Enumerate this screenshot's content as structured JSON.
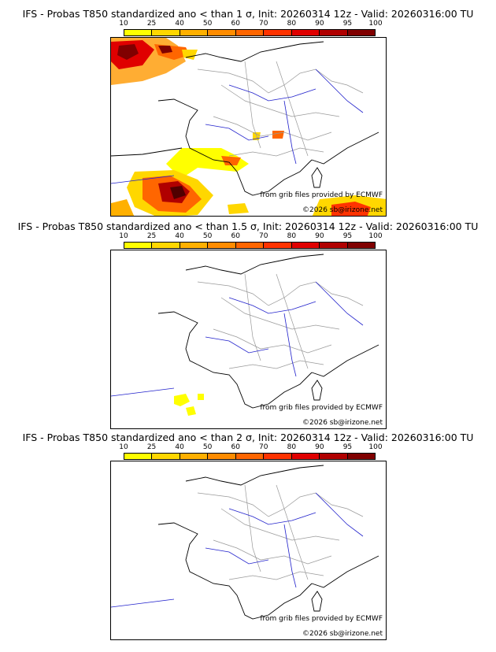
{
  "panels": [
    {
      "title": "IFS - Probas T850  standardized ano < than 1 σ, Init: 20260314 12z - Valid: 20260316:00 TU",
      "credit": "from grib files provided by ECMWF",
      "copyright": "©2026 sb@irizone.net"
    },
    {
      "title": "IFS - Probas T850  standardized ano < than 1.5 σ, Init: 20260314 12z - Valid: 20260316:00 TU",
      "credit": "from grib files provided by ECMWF",
      "copyright": "©2026 sb@irizone.net"
    },
    {
      "title": "IFS - Probas T850  standardized ano < than 2 σ, Init: 20260314 12z - Valid: 20260316:00 TU",
      "credit": "from grib files provided by ECMWF",
      "copyright": "©2026 sb@irizone.net"
    }
  ],
  "scale": {
    "ticks": [
      "10",
      "25",
      "40",
      "50",
      "60",
      "70",
      "80",
      "90",
      "95",
      "100"
    ],
    "colors": [
      "#ffff00",
      "#ffd700",
      "#ffb000",
      "#ff8c00",
      "#ff6600",
      "#ff3300",
      "#e00000",
      "#b00000",
      "#800000"
    ]
  },
  "colors": {
    "rivers": "#2222cc",
    "borders": "#999999",
    "coast": "#000000"
  }
}
